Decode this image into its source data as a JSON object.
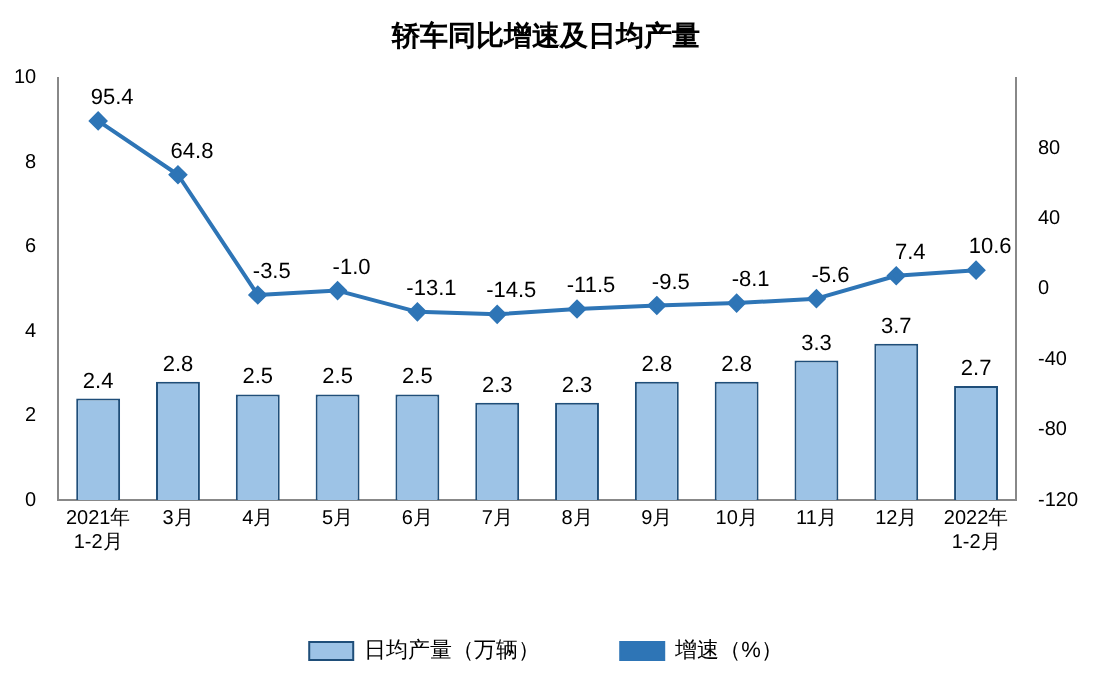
{
  "chart_data": {
    "type": "bar",
    "title": "轿车同比增速及日均产量",
    "categories": [
      "2021年\n1-2月",
      "3月",
      "4月",
      "5月",
      "6月",
      "7月",
      "8月",
      "9月",
      "10月",
      "11月",
      "12月",
      "2022年\n1-2月"
    ],
    "series": [
      {
        "name": "日均产量（万辆）",
        "color": "#9dc3e6",
        "values": [
          2.4,
          2.8,
          2.5,
          2.5,
          2.5,
          2.3,
          2.3,
          2.8,
          2.8,
          3.3,
          3.7,
          2.7
        ],
        "value_labels": [
          "2.4",
          "2.8",
          "2.5",
          "2.5",
          "2.5",
          "2.3",
          "2.3",
          "2.8",
          "2.8",
          "3.3",
          "3.7",
          "2.7"
        ]
      },
      {
        "name": "增速（%）",
        "type": "line",
        "axis": "y2",
        "color": "#2e75b6",
        "marker": "diamond",
        "values": [
          95.4,
          64.8,
          -3.5,
          -1.0,
          -13.1,
          -14.5,
          -11.5,
          -9.5,
          -8.1,
          -5.6,
          7.4,
          10.6
        ],
        "value_labels": [
          "95.4",
          "64.8",
          "-3.5",
          "-1.0",
          "-13.1",
          "-14.5",
          "-11.5",
          "-9.5",
          "-8.1",
          "-5.6",
          "7.4",
          "10.6"
        ]
      }
    ],
    "ylim": [
      0,
      10
    ],
    "yticks": [
      0,
      2,
      4,
      6,
      8,
      10
    ],
    "y2lim": [
      -120,
      120
    ],
    "y2ticks": [
      -120,
      -80,
      -40,
      0,
      40,
      80
    ],
    "grid": false,
    "legend": "bottom"
  }
}
